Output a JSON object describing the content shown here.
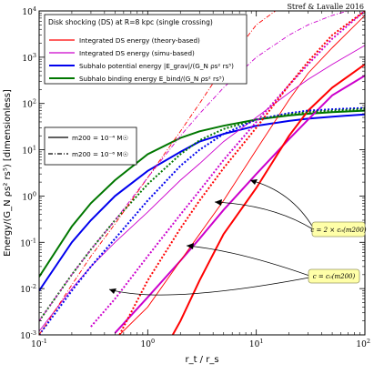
{
  "chart_data": {
    "type": "line",
    "title": "Stref & Lavalle 2016",
    "xlabel": "r_t / r_s",
    "ylabel": "Energy/(G_N ρs² rs⁵) [dimensionless]",
    "xlim": [
      0.1,
      100
    ],
    "ylim": [
      0.001,
      10000
    ],
    "xscale": "log",
    "yscale": "log",
    "grid": false,
    "x_ticks": [
      {
        "v": 0.1,
        "b": "10",
        "e": "-1"
      },
      {
        "v": 1,
        "b": "10",
        "e": "0"
      },
      {
        "v": 10,
        "b": "10",
        "e": "1"
      },
      {
        "v": 100,
        "b": "10",
        "e": "2"
      }
    ],
    "y_ticks": [
      {
        "v": 0.001,
        "b": "10",
        "e": "-3"
      },
      {
        "v": 0.01,
        "b": "10",
        "e": "-2"
      },
      {
        "v": 0.1,
        "b": "10",
        "e": "-1"
      },
      {
        "v": 1,
        "b": "10",
        "e": "0"
      },
      {
        "v": 10,
        "b": "10",
        "e": "1"
      },
      {
        "v": 100,
        "b": "10",
        "e": "2"
      },
      {
        "v": 1000,
        "b": "10",
        "e": "3"
      },
      {
        "v": 10000,
        "b": "10",
        "e": "4"
      }
    ],
    "legend": {
      "placement": "top-left",
      "title": "Disk shocking (DS) at R=8 kpc (single crossing)",
      "entries": [
        {
          "label": "Integrated DS energy (theory-based)",
          "color": "#ff0000"
        },
        {
          "label": "Integrated DS energy (simu-based)",
          "color": "#cc00cc"
        },
        {
          "label": "Subhalo potential energy |E_grav|/(G_N ρs² rs⁵)",
          "color": "#0000ee"
        },
        {
          "label": "Subhalo binding energy E_bind/(G_N ρs² rs⁵)",
          "color": "#007700"
        }
      ]
    },
    "legend2": {
      "placement": "middle-left",
      "entries": [
        {
          "label": "m200 = 10⁻⁴ M☉",
          "style": "solid"
        },
        {
          "label": "m200 = 10⁻⁶ M☉",
          "style": "dashdot"
        }
      ]
    },
    "annotations": [
      {
        "text": "c = 2 × c₀(m200)",
        "x": 40,
        "y": 0.07
      },
      {
        "text": "c = c₀(m200)",
        "x": 30,
        "y": 0.0115
      }
    ],
    "series": [
      {
        "color": "#0000ee",
        "width": 2,
        "dash": "",
        "x": [
          0.1,
          0.2,
          0.3,
          0.5,
          1,
          2,
          3,
          5,
          10,
          20,
          30,
          50,
          100
        ],
        "y": [
          0.009,
          0.1,
          0.3,
          1.0,
          3.5,
          9,
          15,
          22,
          33,
          42,
          47,
          52,
          58
        ]
      },
      {
        "color": "#007700",
        "width": 2,
        "dash": "",
        "x": [
          0.1,
          0.2,
          0.3,
          0.5,
          1,
          2,
          3,
          5,
          10,
          20,
          30,
          50,
          100
        ],
        "y": [
          0.018,
          0.22,
          0.7,
          2.2,
          8,
          18,
          25,
          33,
          45,
          55,
          60,
          65,
          70
        ]
      },
      {
        "color": "#cc00cc",
        "width": 2,
        "dash": "",
        "x": [
          0.5,
          1,
          2,
          3,
          5,
          10,
          20,
          30,
          50,
          100
        ],
        "y": [
          0.0011,
          0.0065,
          0.04,
          0.12,
          0.5,
          3,
          17,
          45,
          150,
          400
        ]
      },
      {
        "color": "#ff0000",
        "width": 2,
        "dash": "",
        "x": [
          1.7,
          2,
          3,
          5,
          10,
          20,
          30,
          50,
          100
        ],
        "y": [
          0.001,
          0.002,
          0.015,
          0.15,
          1.5,
          20,
          70,
          220,
          700
        ]
      },
      {
        "color": "#ff0000",
        "width": 0.9,
        "dash": "",
        "x": [
          0.55,
          1,
          2,
          3,
          5,
          10,
          20,
          30,
          50,
          100
        ],
        "y": [
          0.001,
          0.004,
          0.04,
          0.15,
          0.8,
          10,
          120,
          450,
          1600,
          8000
        ]
      },
      {
        "color": "#cc00cc",
        "width": 0.9,
        "dash": "",
        "x": [
          0.1,
          0.2,
          0.3,
          0.5,
          1,
          2,
          3,
          5,
          10,
          20,
          30,
          50,
          100
        ],
        "y": [
          0.0012,
          0.01,
          0.03,
          0.1,
          0.45,
          2.2,
          5,
          15,
          50,
          170,
          330,
          700,
          1800
        ]
      },
      {
        "color": "#0000ee",
        "width": 2,
        "dash": "2,2",
        "x": [
          0.1,
          0.2,
          0.3,
          0.5,
          1,
          2,
          3,
          5,
          10,
          20,
          30,
          50,
          100
        ],
        "y": [
          0.001,
          0.009,
          0.03,
          0.12,
          0.8,
          4.5,
          10,
          22,
          45,
          62,
          70,
          75,
          80
        ]
      },
      {
        "color": "#007700",
        "width": 2,
        "dash": "2,2",
        "x": [
          0.1,
          0.2,
          0.3,
          0.5,
          1,
          2,
          3,
          5,
          10,
          20,
          30,
          50,
          100
        ],
        "y": [
          0.002,
          0.02,
          0.07,
          0.3,
          1.8,
          8,
          16,
          28,
          45,
          58,
          65,
          70,
          76
        ]
      },
      {
        "color": "#cc00cc",
        "width": 2,
        "dash": "2,2",
        "x": [
          0.3,
          0.5,
          1,
          2,
          3,
          5,
          10,
          20,
          30,
          50,
          100
        ],
        "y": [
          0.0015,
          0.006,
          0.05,
          0.4,
          1.3,
          6,
          40,
          250,
          700,
          2500,
          10000
        ]
      },
      {
        "color": "#ff0000",
        "width": 2,
        "dash": "2,2",
        "x": [
          0.55,
          1,
          2,
          3,
          5,
          10,
          20,
          30,
          50,
          100
        ],
        "y": [
          0.001,
          0.015,
          0.2,
          0.8,
          4,
          30,
          250,
          800,
          3000,
          10000
        ]
      },
      {
        "color": "#ff0000",
        "width": 0.9,
        "dash": "5,2,1,2",
        "x": [
          0.1,
          0.2,
          0.3,
          0.5,
          1,
          2,
          3,
          5,
          10,
          15
        ],
        "y": [
          0.001,
          0.012,
          0.05,
          0.25,
          2.5,
          25,
          100,
          600,
          5000,
          10000
        ]
      },
      {
        "color": "#cc00cc",
        "width": 0.9,
        "dash": "5,2,1,2",
        "x": [
          0.1,
          0.2,
          0.3,
          0.5,
          1,
          2,
          3,
          5,
          10,
          20,
          30,
          50,
          70
        ],
        "y": [
          0.002,
          0.02,
          0.07,
          0.3,
          2.5,
          20,
          60,
          220,
          1000,
          3000,
          5000,
          8000,
          10000
        ]
      }
    ]
  }
}
